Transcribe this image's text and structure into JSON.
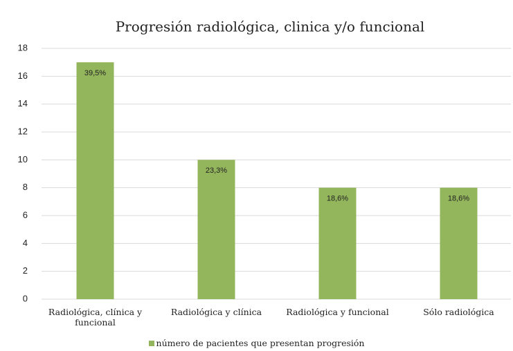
{
  "chart_data": {
    "type": "bar",
    "title": "Progresión radiológica, clinica y/o funcional",
    "categories": [
      "Radiológica, clínica y funcional",
      "Radiológica y clínica",
      "Radiológica y funcional",
      "Sólo radiológica"
    ],
    "series": [
      {
        "name": "número de pacientes que presentan progresión",
        "color": "#93b55c",
        "values": [
          17,
          10,
          8,
          8
        ]
      }
    ],
    "percentages": [
      39.5,
      23.3,
      18.6,
      18.6
    ],
    "percentage_labels": [
      "39,5%",
      "23,3%",
      "18,6%",
      "18,6%"
    ],
    "ylim": [
      0,
      18
    ],
    "yticks": [
      0,
      2,
      4,
      6,
      8,
      10,
      12,
      14,
      16,
      18
    ],
    "grid": true,
    "legend": "bottom"
  }
}
